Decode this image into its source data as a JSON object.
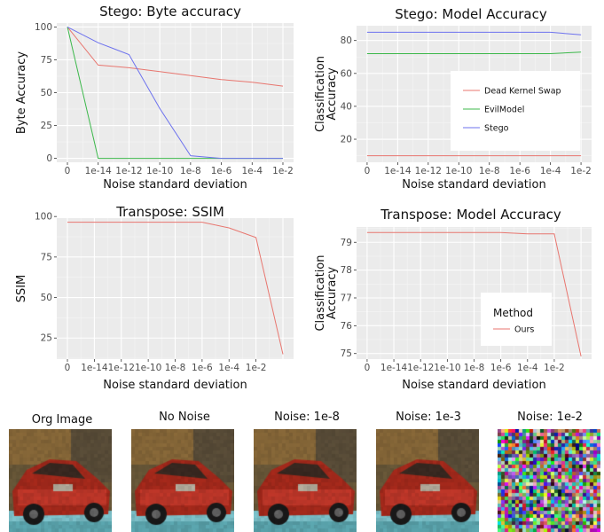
{
  "chart_data": [
    {
      "type": "line",
      "title": "Stego: Byte accuracy",
      "xlabel": "Noise standard deviation",
      "ylabel": "Byte Accuracy",
      "x_tick_labels": [
        "0",
        "1e-14",
        "1e-12",
        "1e-10",
        "1e-8",
        "1e-6",
        "1e-4",
        "1e-2"
      ],
      "y_ticks": [
        0,
        25,
        50,
        75,
        100
      ],
      "ylim": [
        -3,
        103
      ],
      "grid": true,
      "series": [
        {
          "name": "Dead Kernel Swap",
          "color": "#e8766f",
          "values": [
            100,
            71,
            69,
            66,
            63,
            60,
            58,
            55
          ]
        },
        {
          "name": "EvilModel",
          "color": "#3cb84b",
          "values": [
            100,
            0,
            0,
            0,
            0,
            0,
            0,
            0
          ]
        },
        {
          "name": "Stego",
          "color": "#6d72ee",
          "values": [
            100,
            88,
            79,
            38,
            2,
            0,
            0,
            0
          ]
        }
      ]
    },
    {
      "type": "line",
      "title": "Stego: Model Accuracy",
      "xlabel": "Noise standard deviation",
      "ylabel": "Classification Accuracy",
      "ylabel_lines": [
        "Classification",
        "Accuracy"
      ],
      "x_tick_labels": [
        "0",
        "1e-14",
        "1e-12",
        "1e-10",
        "1e-8",
        "1e-6",
        "1e-4",
        "1e-2"
      ],
      "y_ticks": [
        20,
        40,
        60,
        80
      ],
      "ylim": [
        6,
        89
      ],
      "grid": true,
      "legend_position": "center-right",
      "series": [
        {
          "name": "Dead Kernel Swap",
          "color": "#e8766f",
          "values": [
            10,
            10,
            10,
            10,
            10,
            10,
            10,
            10
          ]
        },
        {
          "name": "EvilModel",
          "color": "#3cb84b",
          "values": [
            72,
            72,
            72,
            72,
            72,
            72,
            72,
            73
          ]
        },
        {
          "name": "Stego",
          "color": "#6d72ee",
          "values": [
            85,
            85,
            85,
            85,
            85,
            85,
            85,
            83.5
          ]
        }
      ]
    },
    {
      "type": "line",
      "title": "Transpose: SSIM",
      "xlabel": "Noise standard deviation",
      "ylabel": "SSIM",
      "x_tick_labels": [
        "0",
        "1e-14",
        "1e-12",
        "1e-10",
        "1e-8",
        "1e-6",
        "1e-4",
        "1e-2"
      ],
      "x_positions": [
        0,
        1,
        2,
        3,
        4,
        5,
        6,
        7,
        8
      ],
      "y_ticks": [
        25,
        50,
        75,
        100
      ],
      "ylim": [
        12,
        99
      ],
      "grid": true,
      "series": [
        {
          "name": "Ours",
          "color": "#e8766f",
          "values": [
            96.5,
            96.5,
            96.5,
            96.5,
            96.5,
            96.5,
            93,
            87,
            15
          ]
        }
      ]
    },
    {
      "type": "line",
      "title": "Transpose: Model Accuracy",
      "xlabel": "Noise standard deviation",
      "ylabel": "Classification Accuracy",
      "ylabel_lines": [
        "Classification",
        "Accuracy"
      ],
      "x_tick_labels": [
        "0",
        "1e-14",
        "1e-12",
        "1e-10",
        "1e-8",
        "1e-6",
        "1e-4",
        "1e-2"
      ],
      "x_positions": [
        0,
        1,
        2,
        3,
        4,
        5,
        6,
        7,
        8
      ],
      "y_ticks": [
        75,
        76,
        77,
        78,
        79
      ],
      "ylim": [
        74.8,
        79.55
      ],
      "grid": true,
      "legend_position": "center-right",
      "legend_title": "Method",
      "series": [
        {
          "name": "Ours",
          "color": "#e8766f",
          "values": [
            79.35,
            79.35,
            79.35,
            79.35,
            79.35,
            79.35,
            79.3,
            79.3,
            74.9
          ]
        }
      ]
    }
  ],
  "images": [
    {
      "title": "Org Image",
      "noisy": false
    },
    {
      "title": "No Noise",
      "noisy": false
    },
    {
      "title": "Noise: 1e-8",
      "noisy": false
    },
    {
      "title": "Noise: 1e-3",
      "noisy": false
    },
    {
      "title": "Noise: 1e-2",
      "noisy": true
    }
  ]
}
